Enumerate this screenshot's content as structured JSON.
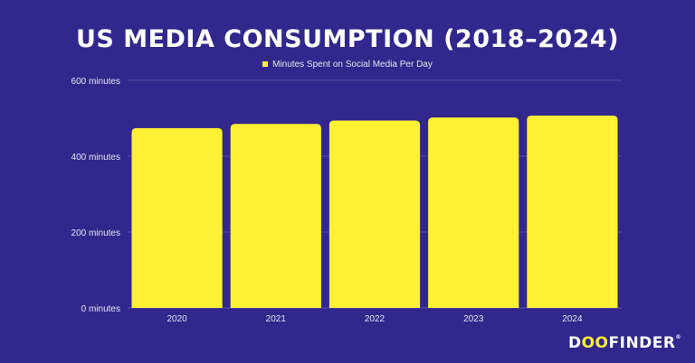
{
  "chart_data": {
    "type": "bar",
    "title": "US MEDIA CONSUMPTION (2018–2024)",
    "categories": [
      "2020",
      "2021",
      "2022",
      "2023",
      "2024"
    ],
    "series": [
      {
        "name": "Minutes Spent on Social Media Per Day",
        "values": [
          474,
          485,
          494,
          502,
          507
        ]
      }
    ],
    "yticks": [
      "0 minutes",
      "200 minutes",
      "400 minutes",
      "600 minutes"
    ],
    "ytick_values": [
      0,
      200,
      400,
      600
    ],
    "ylim": [
      0,
      600
    ],
    "grid": true,
    "legend": "top-center",
    "colors": {
      "background": "#32278c",
      "bar": "#fff133",
      "grid": "#5a50a8"
    }
  },
  "logo": {
    "text_start": "D",
    "text_oo": "OO",
    "text_end": "FINDER",
    "mark": "®"
  }
}
